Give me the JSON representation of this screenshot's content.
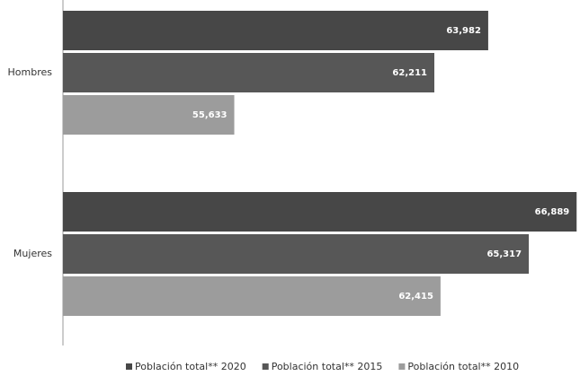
{
  "chart_data": {
    "type": "barh",
    "categories": [
      "Hombres",
      "Mujeres"
    ],
    "series": [
      {
        "name": "Población total** 2020",
        "color": "#474747",
        "values": [
          63982,
          66889
        ],
        "value_labels": [
          "63,982",
          "66,889"
        ]
      },
      {
        "name": "Población total** 2015",
        "color": "#575757",
        "values": [
          62211,
          65317
        ],
        "value_labels": [
          "62,211",
          "65,317"
        ]
      },
      {
        "name": "Población total** 2010",
        "color": "#9c9c9c",
        "values": [
          55633,
          62415
        ],
        "value_labels": [
          "55,633",
          "62,415"
        ]
      }
    ],
    "xlim": [
      50000,
      67000
    ]
  }
}
